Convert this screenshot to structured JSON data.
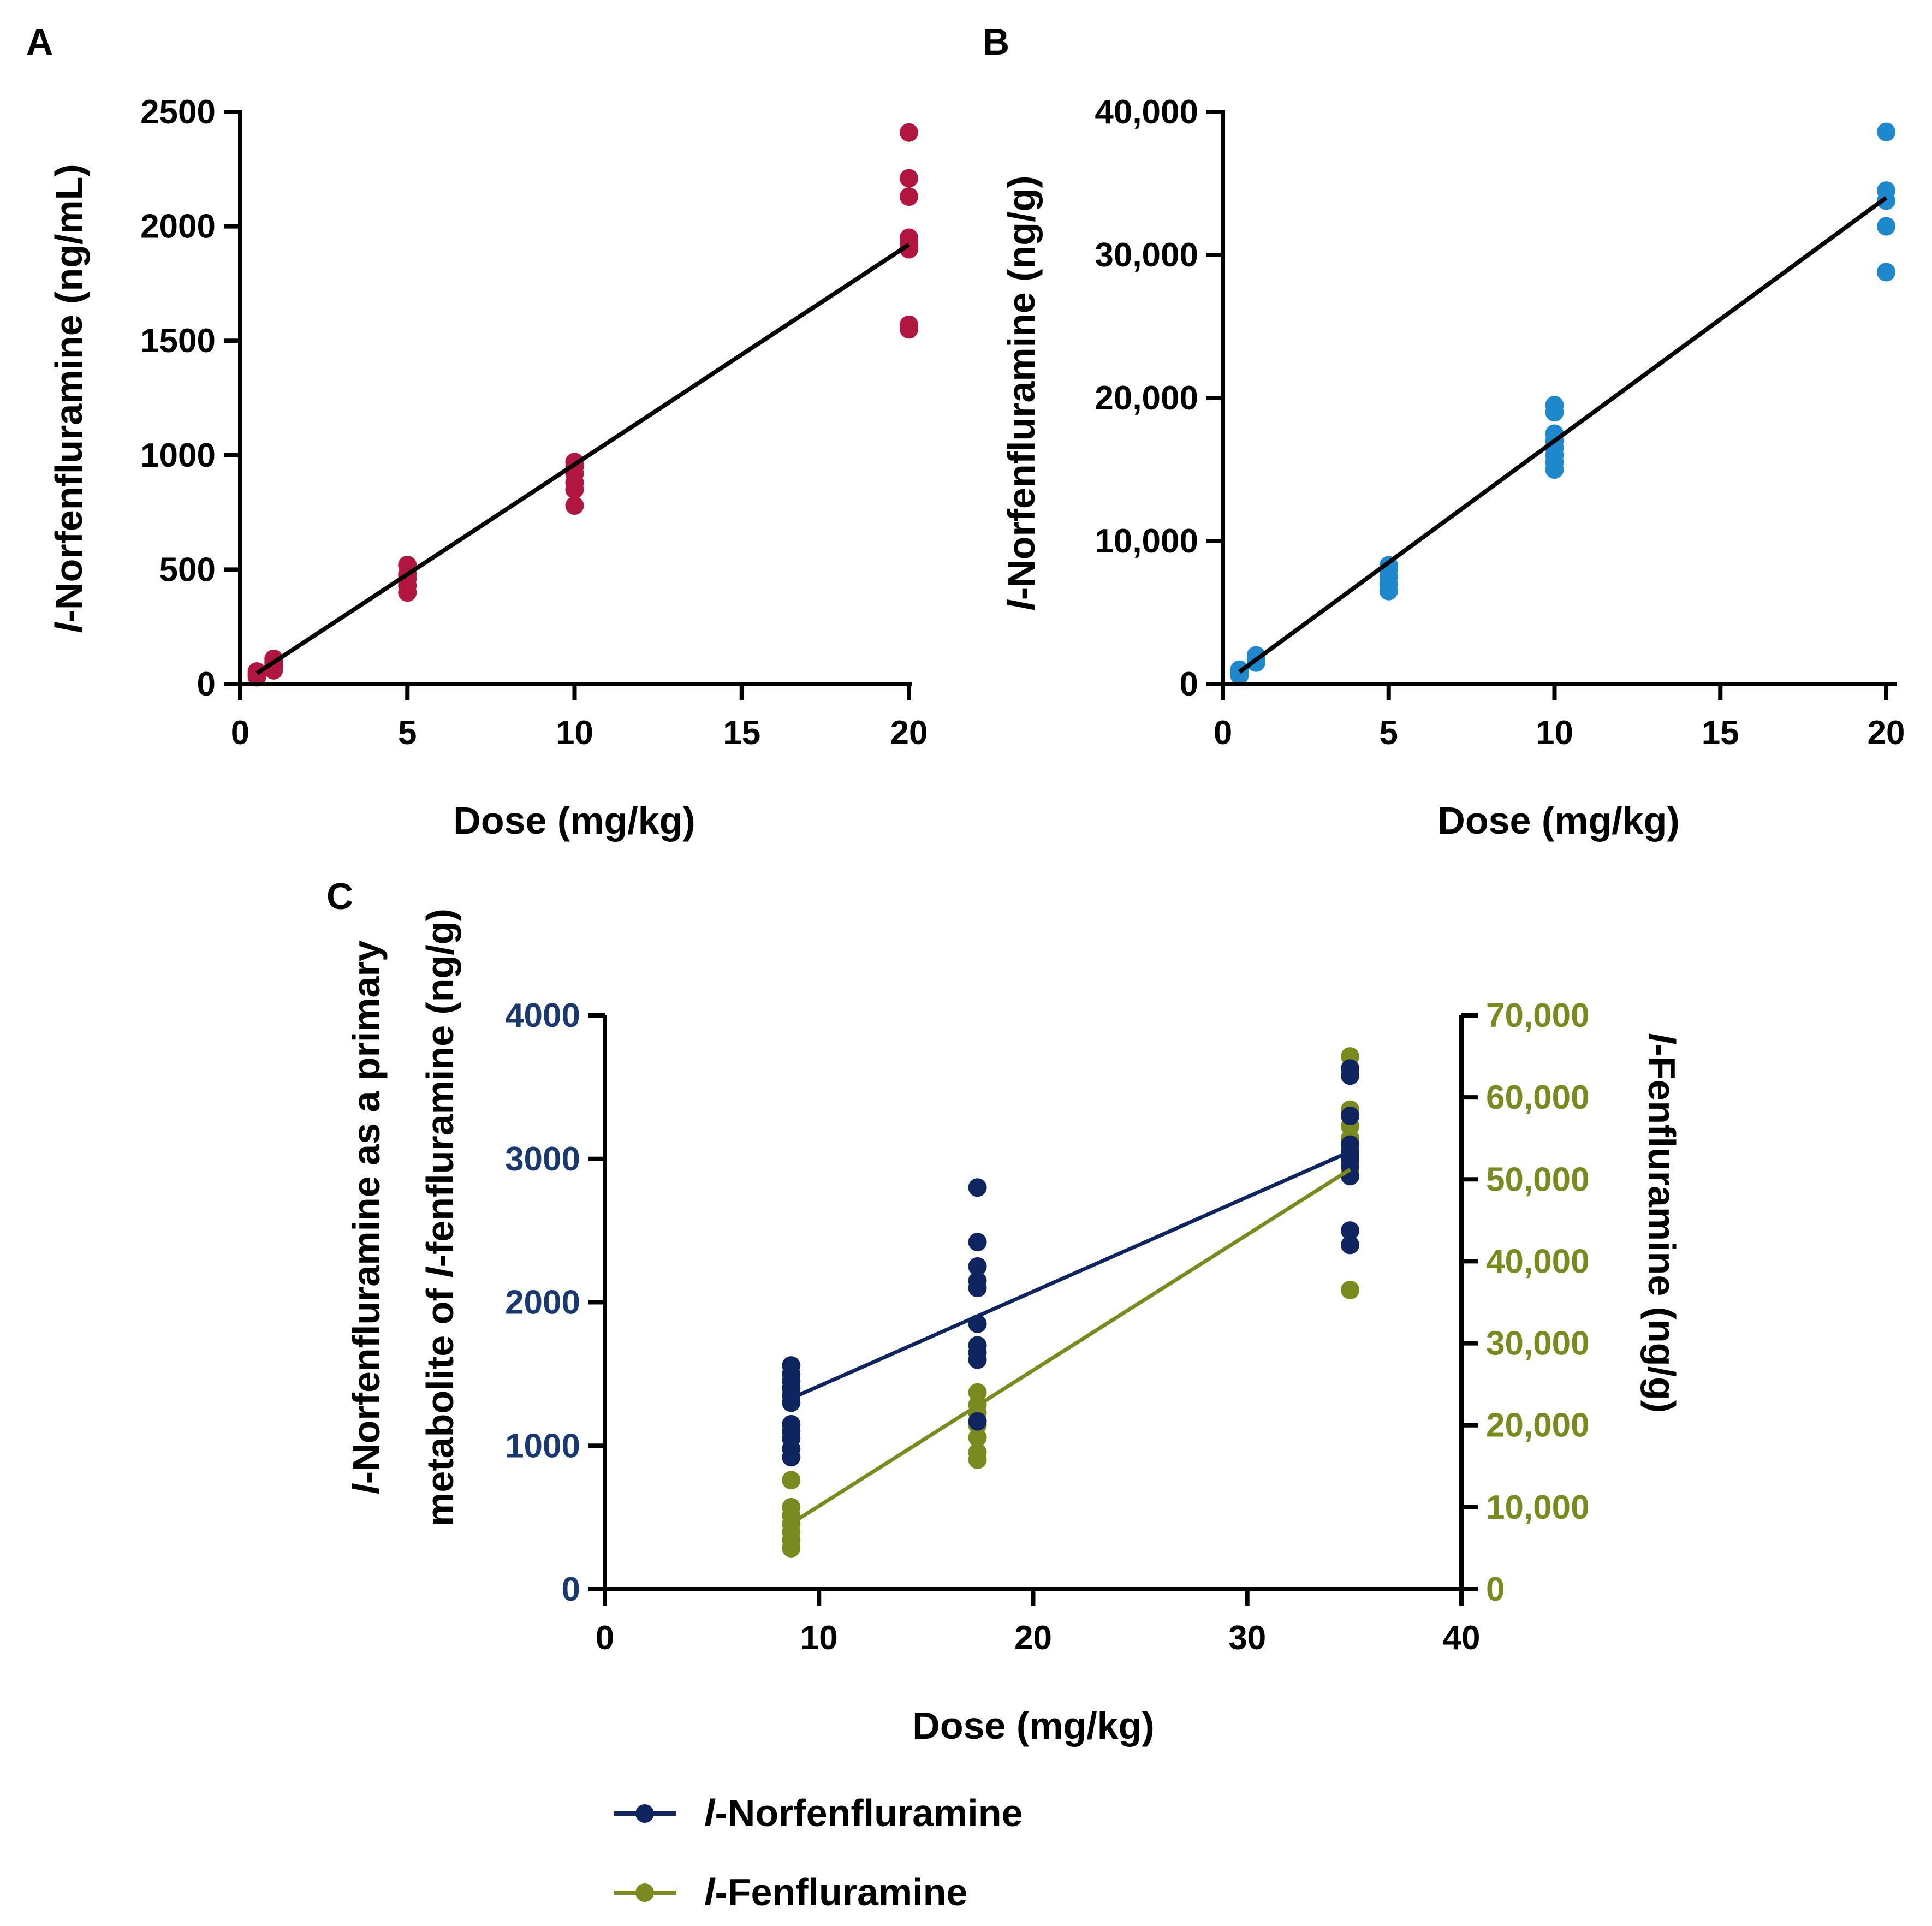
{
  "panel_labels": [
    "A",
    "B",
    "C"
  ],
  "chart_data": [
    {
      "type": "scatter",
      "panel": "A",
      "xlabel": "Dose (mg/kg)",
      "ylabel_italic": "l",
      "ylabel": "-Norfenfluramine (ng/mL)",
      "xlim": [
        0,
        20
      ],
      "ylim": [
        0,
        2500
      ],
      "xticks": [
        0,
        5,
        10,
        15,
        20
      ],
      "yticks": [
        0,
        500,
        1000,
        1500,
        2000,
        2500
      ],
      "xtick_labels": [
        "0",
        "5",
        "10",
        "15",
        "20"
      ],
      "ytick_labels": [
        "0",
        "500",
        "1000",
        "1500",
        "2000",
        "2500"
      ],
      "color": "#b0163f",
      "points": [
        [
          0.5,
          30
        ],
        [
          0.5,
          45
        ],
        [
          0.5,
          55
        ],
        [
          0.5,
          40
        ],
        [
          1,
          60
        ],
        [
          1,
          80
        ],
        [
          1,
          95
        ],
        [
          1,
          110
        ],
        [
          1,
          70
        ],
        [
          5,
          400
        ],
        [
          5,
          430
        ],
        [
          5,
          460
        ],
        [
          5,
          480
        ],
        [
          5,
          520
        ],
        [
          10,
          780
        ],
        [
          10,
          850
        ],
        [
          10,
          880
        ],
        [
          10,
          920
        ],
        [
          10,
          950
        ],
        [
          10,
          970
        ],
        [
          20,
          1550
        ],
        [
          20,
          1570
        ],
        [
          20,
          1900
        ],
        [
          20,
          1920
        ],
        [
          20,
          1950
        ],
        [
          20,
          2130
        ],
        [
          20,
          2210
        ],
        [
          20,
          2410
        ]
      ],
      "fit": [
        [
          0.5,
          47
        ],
        [
          20,
          1920
        ]
      ]
    },
    {
      "type": "scatter",
      "panel": "B",
      "xlabel": "Dose (mg/kg)",
      "ylabel_italic": "l",
      "ylabel": "-Norfenfluramine (ng/g)",
      "xlim": [
        0,
        20
      ],
      "ylim": [
        0,
        40000
      ],
      "xticks": [
        0,
        5,
        10,
        15,
        20
      ],
      "yticks": [
        0,
        10000,
        20000,
        30000,
        40000
      ],
      "xtick_labels": [
        "0",
        "5",
        "10",
        "15",
        "20"
      ],
      "ytick_labels": [
        "0",
        "10,000",
        "20,000",
        "30,000",
        "40,000"
      ],
      "color": "#1e88cc",
      "points": [
        [
          0.5,
          600
        ],
        [
          0.5,
          800
        ],
        [
          0.5,
          1000
        ],
        [
          1,
          1500
        ],
        [
          1,
          1800
        ],
        [
          1,
          2000
        ],
        [
          5,
          6500
        ],
        [
          5,
          7000
        ],
        [
          5,
          7500
        ],
        [
          5,
          8000
        ],
        [
          5,
          8300
        ],
        [
          10,
          15000
        ],
        [
          10,
          15500
        ],
        [
          10,
          16000
        ],
        [
          10,
          16500
        ],
        [
          10,
          17000
        ],
        [
          10,
          17500
        ],
        [
          10,
          19000
        ],
        [
          10,
          19500
        ],
        [
          20,
          28800
        ],
        [
          20,
          32000
        ],
        [
          20,
          33800
        ],
        [
          20,
          34500
        ],
        [
          20,
          38600
        ]
      ],
      "fit": [
        [
          0.5,
          850
        ],
        [
          20,
          34000
        ]
      ]
    },
    {
      "type": "scatter",
      "panel": "C",
      "xlabel": "Dose (mg/kg)",
      "ylabel_line1_pre_italic": "l",
      "ylabel_line1": "-Norfenfluramine as a primary",
      "ylabel_line2": "metabolite of ",
      "ylabel_line2_italic": "l",
      "ylabel_line2_post": "-fenfluramine (ng/g)",
      "y2label_italic": "l",
      "y2label": "-Fenfluramine (ng/g)",
      "xlim": [
        0,
        40
      ],
      "ylim": [
        0,
        4000
      ],
      "y2lim": [
        0,
        70000
      ],
      "xticks": [
        0,
        10,
        20,
        30,
        40
      ],
      "yticks": [
        0,
        1000,
        2000,
        3000,
        4000
      ],
      "y2ticks": [
        0,
        10000,
        20000,
        30000,
        40000,
        50000,
        60000,
        70000
      ],
      "xtick_labels": [
        "0",
        "10",
        "20",
        "30",
        "40"
      ],
      "ytick_labels": [
        "0",
        "1000",
        "2000",
        "3000",
        "4000"
      ],
      "y2tick_labels": [
        "0",
        "10,000",
        "20,000",
        "30,000",
        "40,000",
        "50,000",
        "60,000",
        "70,000"
      ],
      "left_axis_color": "#1a3870",
      "right_axis_color": "#7a8a1e",
      "series": [
        {
          "name_italic": "l",
          "name": "-Norfenfluramine",
          "axis": "left",
          "color": "#0f2560",
          "points": [
            [
              8.7,
              920
            ],
            [
              8.7,
              980
            ],
            [
              8.7,
              1050
            ],
            [
              8.7,
              1100
            ],
            [
              8.7,
              1150
            ],
            [
              8.7,
              1300
            ],
            [
              8.7,
              1350
            ],
            [
              8.7,
              1400
            ],
            [
              8.7,
              1450
            ],
            [
              8.7,
              1500
            ],
            [
              8.7,
              1560
            ],
            [
              17.4,
              1170
            ],
            [
              17.4,
              1600
            ],
            [
              17.4,
              1650
            ],
            [
              17.4,
              1700
            ],
            [
              17.4,
              1850
            ],
            [
              17.4,
              2100
            ],
            [
              17.4,
              2150
            ],
            [
              17.4,
              2250
            ],
            [
              17.4,
              2420
            ],
            [
              17.4,
              2800
            ],
            [
              34.8,
              2400
            ],
            [
              34.8,
              2500
            ],
            [
              34.8,
              2880
            ],
            [
              34.8,
              2950
            ],
            [
              34.8,
              3000
            ],
            [
              34.8,
              3050
            ],
            [
              34.8,
              3100
            ],
            [
              34.8,
              3300
            ],
            [
              34.8,
              3580
            ],
            [
              34.8,
              3630
            ]
          ],
          "fit": [
            [
              8.7,
              1330
            ],
            [
              34.8,
              3050
            ]
          ]
        },
        {
          "name_italic": "l",
          "name": "-Fenfluramine",
          "axis": "right",
          "color": "#7a8a1e",
          "points": [
            [
              8.7,
              5000
            ],
            [
              8.7,
              6000
            ],
            [
              8.7,
              7000
            ],
            [
              8.7,
              8000
            ],
            [
              8.7,
              9000
            ],
            [
              8.7,
              10000
            ],
            [
              8.7,
              13300
            ],
            [
              17.4,
              15800
            ],
            [
              17.4,
              16700
            ],
            [
              17.4,
              18500
            ],
            [
              17.4,
              20000
            ],
            [
              17.4,
              21500
            ],
            [
              17.4,
              22500
            ],
            [
              17.4,
              24000
            ],
            [
              34.8,
              36500
            ],
            [
              34.8,
              51000
            ],
            [
              34.8,
              53000
            ],
            [
              34.8,
              55000
            ],
            [
              34.8,
              56500
            ],
            [
              34.8,
              58500
            ],
            [
              34.8,
              65000
            ]
          ],
          "fit": [
            [
              8.7,
              8000
            ],
            [
              34.8,
              51200
            ]
          ]
        }
      ]
    }
  ]
}
